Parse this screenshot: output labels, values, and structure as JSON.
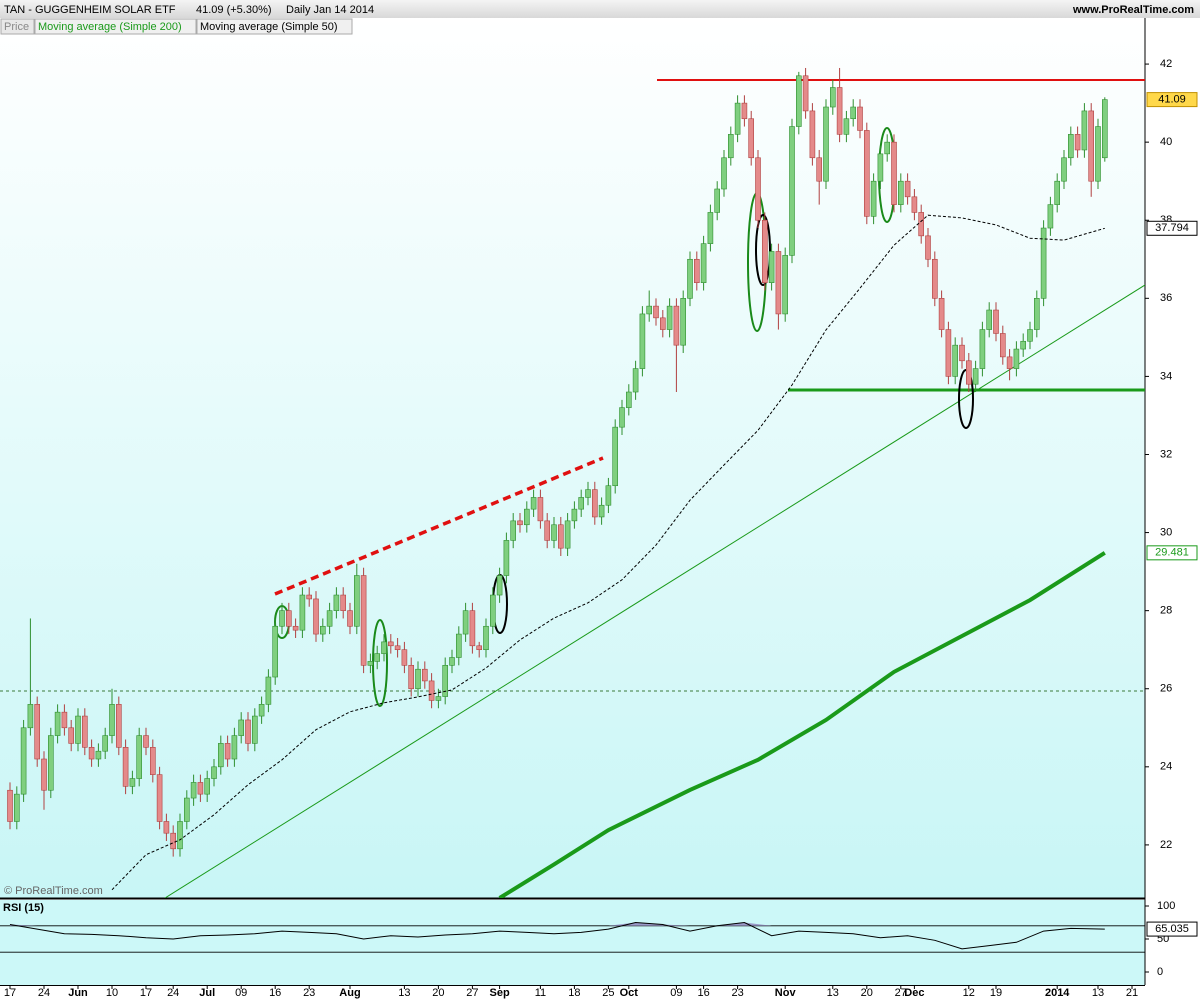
{
  "chart_data": {
    "type": "candlestick",
    "title": "TAN - GUGGENHEIM SOLAR ETF",
    "quote": "41.09 (+5.30%)",
    "period": "Daily  Jan 14 2014",
    "website": "www.ProRealTime.com",
    "copyright": "© ProRealTime.com",
    "price_label": "Price",
    "up_color": "#7fcf7f",
    "down_color": "#e48a8a",
    "categories": [
      "17",
      null,
      null,
      null,
      null,
      "24",
      null,
      null,
      null,
      null,
      "Jun",
      null,
      null,
      null,
      null,
      "10",
      null,
      null,
      null,
      null,
      "17",
      null,
      null,
      null,
      "24",
      null,
      null,
      null,
      null,
      "Jul",
      null,
      null,
      null,
      null,
      "09",
      null,
      null,
      null,
      null,
      "16",
      null,
      null,
      null,
      null,
      "23",
      null,
      null,
      null,
      null,
      null,
      "Aug",
      null,
      null,
      null,
      null,
      null,
      null,
      null,
      "13",
      null,
      null,
      null,
      null,
      "20",
      null,
      null,
      null,
      null,
      "27",
      null,
      null,
      null,
      "Sep",
      null,
      null,
      null,
      null,
      null,
      "11",
      null,
      null,
      null,
      null,
      "18",
      null,
      null,
      null,
      null,
      "25",
      null,
      null,
      "Oct",
      null,
      null,
      null,
      null,
      null,
      null,
      "09",
      null,
      null,
      null,
      "16",
      null,
      null,
      null,
      null,
      "23",
      null,
      null,
      null,
      null,
      null,
      null,
      "Nov",
      null,
      null,
      null,
      null,
      null,
      null,
      "13",
      null,
      null,
      null,
      null,
      "20",
      null,
      null,
      null,
      null,
      "27",
      null,
      "Dec",
      null,
      null,
      null,
      null,
      null,
      null,
      null,
      "12",
      null,
      null,
      null,
      "19",
      null,
      null,
      null,
      null,
      null,
      null,
      null,
      null,
      "2014",
      null,
      null,
      null,
      null,
      null,
      "13",
      null,
      null,
      null,
      null,
      "21"
    ],
    "candles": [
      [
        23.4,
        23.6,
        22.4,
        22.6
      ],
      [
        22.6,
        23.5,
        22.4,
        23.3
      ],
      [
        23.3,
        25.2,
        23.1,
        25.0
      ],
      [
        25.0,
        27.8,
        24.8,
        25.6
      ],
      [
        25.6,
        25.8,
        24.0,
        24.2
      ],
      [
        24.2,
        24.4,
        22.9,
        23.4
      ],
      [
        23.4,
        25.0,
        23.2,
        24.8
      ],
      [
        24.8,
        25.6,
        24.6,
        25.4
      ],
      [
        25.4,
        25.6,
        24.8,
        25.0
      ],
      [
        25.0,
        25.2,
        24.4,
        24.6
      ],
      [
        24.6,
        25.5,
        24.4,
        25.3
      ],
      [
        25.3,
        25.5,
        24.3,
        24.5
      ],
      [
        24.5,
        24.7,
        24.0,
        24.2
      ],
      [
        24.2,
        24.6,
        24.0,
        24.4
      ],
      [
        24.4,
        25.0,
        24.2,
        24.8
      ],
      [
        24.8,
        26.0,
        24.6,
        25.6
      ],
      [
        25.6,
        25.8,
        24.3,
        24.5
      ],
      [
        24.5,
        24.7,
        23.3,
        23.5
      ],
      [
        23.5,
        23.9,
        23.3,
        23.7
      ],
      [
        23.7,
        25.0,
        23.5,
        24.8
      ],
      [
        24.8,
        25.0,
        24.3,
        24.5
      ],
      [
        24.5,
        24.7,
        23.6,
        23.8
      ],
      [
        23.8,
        24.0,
        22.4,
        22.6
      ],
      [
        22.6,
        22.8,
        22.1,
        22.3
      ],
      [
        22.3,
        22.5,
        21.7,
        21.9
      ],
      [
        21.9,
        22.8,
        21.7,
        22.6
      ],
      [
        22.6,
        23.4,
        22.4,
        23.2
      ],
      [
        23.2,
        23.8,
        23.0,
        23.6
      ],
      [
        23.6,
        23.8,
        23.1,
        23.3
      ],
      [
        23.3,
        23.9,
        23.1,
        23.7
      ],
      [
        23.7,
        24.2,
        23.5,
        24.0
      ],
      [
        24.0,
        24.8,
        23.8,
        24.6
      ],
      [
        24.6,
        24.8,
        24.0,
        24.2
      ],
      [
        24.2,
        25.0,
        24.0,
        24.8
      ],
      [
        24.8,
        25.4,
        24.6,
        25.2
      ],
      [
        25.2,
        25.4,
        24.4,
        24.6
      ],
      [
        24.6,
        25.5,
        24.4,
        25.3
      ],
      [
        25.3,
        25.8,
        25.1,
        25.6
      ],
      [
        25.6,
        26.5,
        25.4,
        26.3
      ],
      [
        26.3,
        27.8,
        26.1,
        27.6
      ],
      [
        27.6,
        28.2,
        27.4,
        28.0
      ],
      [
        28.0,
        28.2,
        27.4,
        27.6
      ],
      [
        27.6,
        27.8,
        27.3,
        27.5
      ],
      [
        27.5,
        28.6,
        27.3,
        28.4
      ],
      [
        28.4,
        28.6,
        28.1,
        28.3
      ],
      [
        28.3,
        28.5,
        27.2,
        27.4
      ],
      [
        27.4,
        27.8,
        27.2,
        27.6
      ],
      [
        27.6,
        28.2,
        27.4,
        28.0
      ],
      [
        28.0,
        28.6,
        27.8,
        28.4
      ],
      [
        28.4,
        28.6,
        27.8,
        28.0
      ],
      [
        28.0,
        28.2,
        27.4,
        27.6
      ],
      [
        27.6,
        29.2,
        27.4,
        28.9
      ],
      [
        28.9,
        29.1,
        26.4,
        26.6
      ],
      [
        26.6,
        26.9,
        26.4,
        26.7
      ],
      [
        26.7,
        27.1,
        26.5,
        26.9
      ],
      [
        26.9,
        27.4,
        26.7,
        27.2
      ],
      [
        27.2,
        27.4,
        26.9,
        27.1
      ],
      [
        27.1,
        27.3,
        26.8,
        27.0
      ],
      [
        27.0,
        27.2,
        26.4,
        26.6
      ],
      [
        26.6,
        26.8,
        25.8,
        26.0
      ],
      [
        26.0,
        26.7,
        25.8,
        26.5
      ],
      [
        26.5,
        26.7,
        26.0,
        26.2
      ],
      [
        26.2,
        26.4,
        25.5,
        25.7
      ],
      [
        25.7,
        26.0,
        25.5,
        25.8
      ],
      [
        25.8,
        26.8,
        25.6,
        26.6
      ],
      [
        26.6,
        27.0,
        26.4,
        26.8
      ],
      [
        26.8,
        27.6,
        26.6,
        27.4
      ],
      [
        27.4,
        28.2,
        27.2,
        28.0
      ],
      [
        28.0,
        28.2,
        26.9,
        27.1
      ],
      [
        27.1,
        27.2,
        26.8,
        27.0
      ],
      [
        27.0,
        27.8,
        26.8,
        27.6
      ],
      [
        27.6,
        28.6,
        27.4,
        28.4
      ],
      [
        28.4,
        29.1,
        28.2,
        28.9
      ],
      [
        28.9,
        30.0,
        28.7,
        29.8
      ],
      [
        29.8,
        30.5,
        29.6,
        30.3
      ],
      [
        30.3,
        30.5,
        30.0,
        30.2
      ],
      [
        30.2,
        30.8,
        30.0,
        30.6
      ],
      [
        30.6,
        31.1,
        30.4,
        30.9
      ],
      [
        30.9,
        31.1,
        30.1,
        30.3
      ],
      [
        30.3,
        30.5,
        29.6,
        29.8
      ],
      [
        29.8,
        30.4,
        29.6,
        30.2
      ],
      [
        30.2,
        30.4,
        29.4,
        29.6
      ],
      [
        29.6,
        30.5,
        29.4,
        30.3
      ],
      [
        30.3,
        30.8,
        30.1,
        30.6
      ],
      [
        30.6,
        31.1,
        30.4,
        30.9
      ],
      [
        30.9,
        31.3,
        30.7,
        31.1
      ],
      [
        31.1,
        31.3,
        30.2,
        30.4
      ],
      [
        30.4,
        30.9,
        30.2,
        30.7
      ],
      [
        30.7,
        31.4,
        30.5,
        31.2
      ],
      [
        31.2,
        32.9,
        31.0,
        32.7
      ],
      [
        32.7,
        33.4,
        32.5,
        33.2
      ],
      [
        33.2,
        33.8,
        33.0,
        33.6
      ],
      [
        33.6,
        34.4,
        33.4,
        34.2
      ],
      [
        34.2,
        35.8,
        34.0,
        35.6
      ],
      [
        35.6,
        36.2,
        35.4,
        35.8
      ],
      [
        35.8,
        36.0,
        35.3,
        35.5
      ],
      [
        35.5,
        35.7,
        35.0,
        35.2
      ],
      [
        35.2,
        36.0,
        35.0,
        35.8
      ],
      [
        35.8,
        36.0,
        33.6,
        34.8
      ],
      [
        34.8,
        36.2,
        34.6,
        36.0
      ],
      [
        36.0,
        37.2,
        35.8,
        37.0
      ],
      [
        37.0,
        37.2,
        36.2,
        36.4
      ],
      [
        36.4,
        37.6,
        36.2,
        37.4
      ],
      [
        37.4,
        38.4,
        37.2,
        38.2
      ],
      [
        38.2,
        39.0,
        38.0,
        38.8
      ],
      [
        38.8,
        39.8,
        38.6,
        39.6
      ],
      [
        39.6,
        40.4,
        39.4,
        40.2
      ],
      [
        40.2,
        41.2,
        40.0,
        41.0
      ],
      [
        41.0,
        41.2,
        40.4,
        40.6
      ],
      [
        40.6,
        40.8,
        39.4,
        39.6
      ],
      [
        39.6,
        39.8,
        37.8,
        38.0
      ],
      [
        38.0,
        38.2,
        36.2,
        36.4
      ],
      [
        36.4,
        37.4,
        36.2,
        37.2
      ],
      [
        37.2,
        37.4,
        35.2,
        35.6
      ],
      [
        35.6,
        37.3,
        35.4,
        37.1
      ],
      [
        37.1,
        40.6,
        36.9,
        40.4
      ],
      [
        40.4,
        41.8,
        40.2,
        41.7
      ],
      [
        41.7,
        41.9,
        40.6,
        40.8
      ],
      [
        40.8,
        41.0,
        39.4,
        39.6
      ],
      [
        39.6,
        39.8,
        38.4,
        39.0
      ],
      [
        39.0,
        41.1,
        38.8,
        40.9
      ],
      [
        40.9,
        41.6,
        40.7,
        41.4
      ],
      [
        41.4,
        41.9,
        40.0,
        40.2
      ],
      [
        40.2,
        40.8,
        40.0,
        40.6
      ],
      [
        40.6,
        41.1,
        40.4,
        40.9
      ],
      [
        40.9,
        41.1,
        40.1,
        40.3
      ],
      [
        40.3,
        40.5,
        37.9,
        38.1
      ],
      [
        38.1,
        39.2,
        37.9,
        39.0
      ],
      [
        39.0,
        39.9,
        38.8,
        39.7
      ],
      [
        39.7,
        40.2,
        39.5,
        40.0
      ],
      [
        40.0,
        40.2,
        38.2,
        38.4
      ],
      [
        38.4,
        39.2,
        38.2,
        39.0
      ],
      [
        39.0,
        39.2,
        38.4,
        38.6
      ],
      [
        38.6,
        38.8,
        38.0,
        38.2
      ],
      [
        38.2,
        38.4,
        37.4,
        37.6
      ],
      [
        37.6,
        37.8,
        36.8,
        37.0
      ],
      [
        37.0,
        37.2,
        35.8,
        36.0
      ],
      [
        36.0,
        36.2,
        35.0,
        35.2
      ],
      [
        35.2,
        35.4,
        33.8,
        34.0
      ],
      [
        34.0,
        35.0,
        33.8,
        34.8
      ],
      [
        34.8,
        35.0,
        34.2,
        34.4
      ],
      [
        34.4,
        34.6,
        33.6,
        33.8
      ],
      [
        33.8,
        34.4,
        33.6,
        34.2
      ],
      [
        34.2,
        35.4,
        34.0,
        35.2
      ],
      [
        35.2,
        35.9,
        35.0,
        35.7
      ],
      [
        35.7,
        35.9,
        34.9,
        35.1
      ],
      [
        35.1,
        35.3,
        34.3,
        34.5
      ],
      [
        34.5,
        34.7,
        33.9,
        34.2
      ],
      [
        34.2,
        34.9,
        34.0,
        34.7
      ],
      [
        34.7,
        35.1,
        34.5,
        34.9
      ],
      [
        34.9,
        35.4,
        34.7,
        35.2
      ],
      [
        35.2,
        36.2,
        35.0,
        36.0
      ],
      [
        36.0,
        38.0,
        35.8,
        37.8
      ],
      [
        37.8,
        38.6,
        37.6,
        38.4
      ],
      [
        38.4,
        39.2,
        38.2,
        39.0
      ],
      [
        39.0,
        39.8,
        38.8,
        39.6
      ],
      [
        39.6,
        40.4,
        39.4,
        40.2
      ],
      [
        40.2,
        40.4,
        39.6,
        39.8
      ],
      [
        39.8,
        41.0,
        39.6,
        40.8
      ],
      [
        40.8,
        41.0,
        38.6,
        39.0
      ],
      [
        39.0,
        40.6,
        38.8,
        40.4
      ],
      [
        39.6,
        41.15,
        39.5,
        41.09
      ],
      null,
      null,
      null,
      null
    ],
    "series": [
      {
        "name": "Moving average (Simple 200)",
        "color": "#1a9a1a",
        "width": 4,
        "dashed": false,
        "x": [
          72,
          80,
          88,
          100,
          110,
          120,
          130,
          140,
          150,
          161
        ],
        "values": [
          20.64,
          21.5,
          22.38,
          23.41,
          24.18,
          25.2,
          26.43,
          27.35,
          28.27,
          29.481
        ]
      },
      {
        "name": "Moving average (Simple 50)",
        "color": "#000000",
        "width": 1,
        "dashed": true,
        "x": [
          15,
          20,
          25,
          30,
          35,
          40,
          45,
          50,
          55,
          60,
          65,
          70,
          75,
          80,
          85,
          90,
          95,
          100,
          105,
          110,
          115,
          120,
          125,
          130,
          135,
          140,
          145,
          150,
          155,
          161
        ],
        "values": [
          20.85,
          21.75,
          22.13,
          22.77,
          23.54,
          24.18,
          24.95,
          25.41,
          25.64,
          25.79,
          25.97,
          26.53,
          27.25,
          27.81,
          28.2,
          28.79,
          29.68,
          30.83,
          31.73,
          32.62,
          33.78,
          35.19,
          36.26,
          37.36,
          38.13,
          38.06,
          37.88,
          37.54,
          37.49,
          37.794
        ]
      }
    ],
    "ylim": [
      20.64,
      43.18
    ],
    "yticks": [
      22,
      24,
      26,
      28,
      30,
      32,
      34,
      36,
      38,
      40,
      42
    ],
    "rsi": {
      "title": "RSI (15)",
      "color": "#000000",
      "fill": "#9a9ac8",
      "x": [
        0,
        4,
        8,
        12,
        16,
        20,
        24,
        28,
        32,
        36,
        40,
        44,
        48,
        52,
        56,
        60,
        64,
        68,
        72,
        76,
        80,
        84,
        88,
        92,
        96,
        100,
        104,
        108,
        112,
        116,
        120,
        124,
        128,
        132,
        136,
        140,
        144,
        148,
        152,
        156,
        161
      ],
      "values": [
        72,
        65,
        58,
        57,
        55,
        52,
        50,
        55,
        56,
        58,
        62,
        60,
        58,
        50,
        55,
        53,
        56,
        58,
        62,
        60,
        58,
        60,
        65,
        75,
        72,
        62,
        70,
        75,
        55,
        62,
        60,
        58,
        52,
        55,
        48,
        35,
        40,
        45,
        62,
        66,
        65.035
      ],
      "ylim": [
        -19.7,
        109.1
      ],
      "yticks": [
        0,
        50,
        100
      ],
      "levels": [
        30,
        70
      ]
    }
  }
}
